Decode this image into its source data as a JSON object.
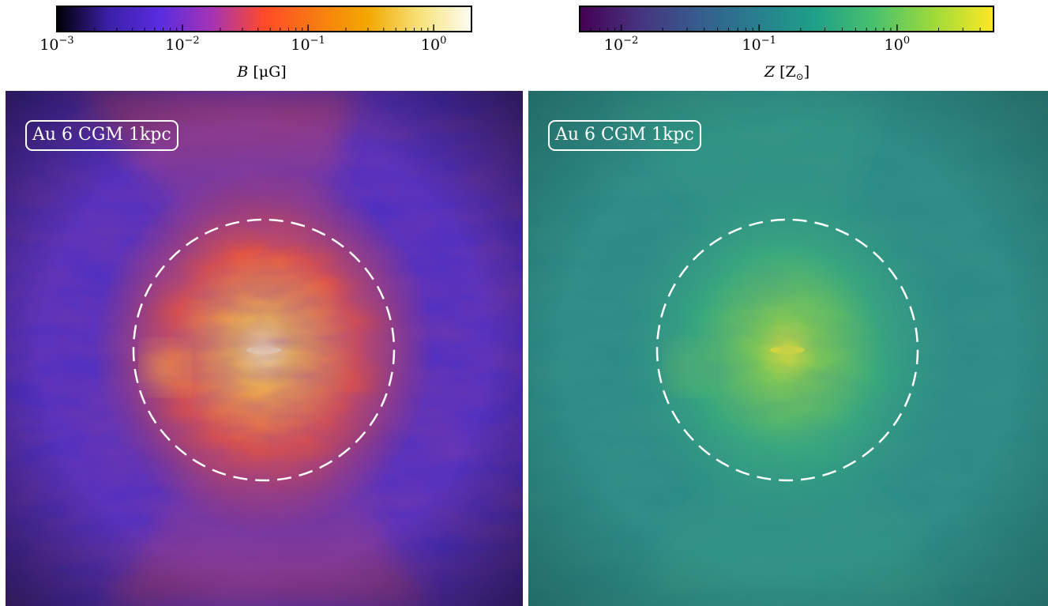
{
  "panels": [
    {
      "badge": "Au 6 CGM 1kpc",
      "colorbar": {
        "quantity": "B",
        "unit": "μG",
        "scale": "log",
        "range": [
          0.001,
          2.0
        ],
        "cmap": [
          "#000004",
          "#3b1fa8",
          "#5a2ce0",
          "#a633b3",
          "#ff4a2a",
          "#f77b10",
          "#f2a800",
          "#f7e27a",
          "#fcfdf2"
        ],
        "ticks": [
          {
            "base": "10",
            "exp": "−3",
            "value": 0.001
          },
          {
            "base": "10",
            "exp": "−2",
            "value": 0.01
          },
          {
            "base": "10",
            "exp": "−1",
            "value": 0.1
          },
          {
            "base": "10",
            "exp": "0",
            "value": 1
          }
        ]
      },
      "map": {
        "background": "#4a2ec4",
        "glow": [
          "#fff3b0",
          "#ffc845",
          "#ff5a2a",
          "#e0402e"
        ],
        "circle_color": "#ffffff"
      }
    },
    {
      "badge": "Au 6 CGM 1kpc",
      "colorbar": {
        "quantity": "Z",
        "unit": "Z",
        "unit_sub": "⊙",
        "scale": "log",
        "range": [
          0.005,
          5.0
        ],
        "cmap": [
          "#440154",
          "#46337e",
          "#365c8d",
          "#277f8e",
          "#1fa187",
          "#4ac16d",
          "#a0da39",
          "#fde725"
        ],
        "ticks": [
          {
            "base": "10",
            "exp": "−2",
            "value": 0.01
          },
          {
            "base": "10",
            "exp": "−1",
            "value": 0.1
          },
          {
            "base": "10",
            "exp": "0",
            "value": 1
          }
        ]
      },
      "map": {
        "background": "#2a8a86",
        "glow": [
          "#f5e430",
          "#8fd24a",
          "#38b07a",
          "#2e9784"
        ],
        "circle_color": "#ffffff"
      }
    }
  ]
}
